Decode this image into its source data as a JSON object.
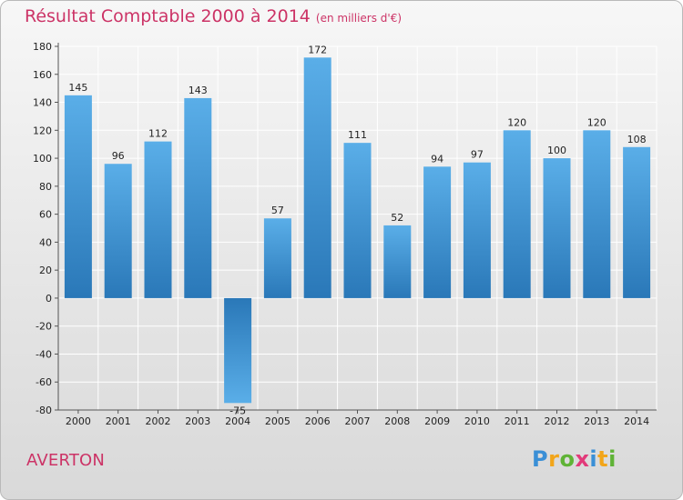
{
  "header": {
    "title": "Résultat Comptable 2000 à 2014",
    "unit": "(en milliers d'€)"
  },
  "commune": "AVERTON",
  "logo": {
    "letters": [
      "P",
      "r",
      "o",
      "x",
      "i",
      "t",
      "i"
    ]
  },
  "chart_data": {
    "type": "bar",
    "title": "Résultat Comptable 2000 à 2014",
    "subtitle": "(en milliers d'€)",
    "categories": [
      "2000",
      "2001",
      "2002",
      "2003",
      "2004",
      "2005",
      "2006",
      "2007",
      "2008",
      "2009",
      "2010",
      "2011",
      "2012",
      "2013",
      "2014"
    ],
    "values": [
      145,
      96,
      112,
      143,
      -75,
      57,
      172,
      111,
      52,
      94,
      97,
      120,
      100,
      120,
      108
    ],
    "ylim": [
      -80,
      180
    ],
    "yticks": [
      180,
      160,
      140,
      120,
      100,
      80,
      60,
      40,
      20,
      0,
      -20,
      -40,
      -60,
      -80
    ],
    "grid": true,
    "colors": {
      "bar_top": "#5aaee8",
      "bar_bottom": "#2a78b8",
      "grid": "#ffffff",
      "title": "#cc3366"
    }
  }
}
